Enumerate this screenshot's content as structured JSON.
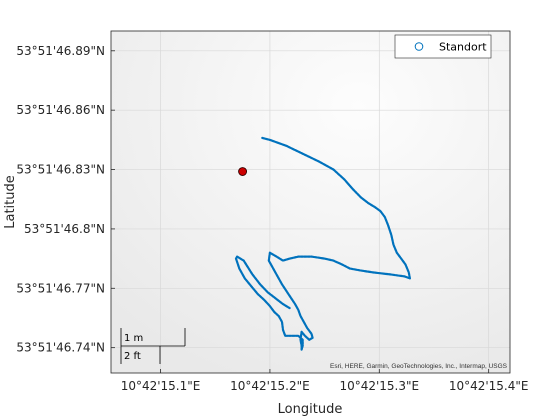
{
  "axes": {
    "xlabel": "Longitude",
    "ylabel": "Latitude",
    "xticks": [
      "10°42'15.1\"E",
      "10°42'15.2\"E",
      "10°42'15.3\"E",
      "10°42'15.4\"E"
    ],
    "yticks": [
      "53°51'46.89\"N",
      "53°51'46.86\"N",
      "53°51'46.83\"N",
      "53°51'46.8\"N",
      "53°51'46.77\"N",
      "53°51'46.74\"N"
    ],
    "grid": true
  },
  "legend": {
    "placement": "top-right",
    "entries": [
      {
        "label": "Standort",
        "marker": "circle-outline",
        "color": "#0072BD"
      }
    ]
  },
  "scalebar": {
    "metric_label": "1 m",
    "imperial_label": "2 ft"
  },
  "attribution": "Esri, HERE, Garmin, GeoTechnologies, Inc., Intermap, USGS",
  "colors": {
    "track": "#0072BD",
    "current_position_fill": "#CC0000",
    "current_position_edge": "#330000",
    "background": "#F3F3F3",
    "grid": "#D8D8D8"
  },
  "track_units": "seconds past 10°42' E / seconds past 53°51' N",
  "track_segments": [
    [
      [
        15.193,
        46.846
      ],
      [
        15.2,
        46.845
      ],
      [
        15.215,
        46.842
      ],
      [
        15.23,
        46.838
      ],
      [
        15.245,
        46.834
      ],
      [
        15.258,
        46.83
      ],
      [
        15.268,
        46.825
      ],
      [
        15.276,
        46.82
      ],
      [
        15.283,
        46.816
      ],
      [
        15.29,
        46.813
      ],
      [
        15.296,
        46.811
      ],
      [
        15.301,
        46.809
      ],
      [
        15.305,
        46.806
      ],
      [
        15.308,
        46.802
      ],
      [
        15.311,
        46.797
      ],
      [
        15.313,
        46.792
      ],
      [
        15.316,
        46.788
      ],
      [
        15.32,
        46.785
      ],
      [
        15.324,
        46.782
      ],
      [
        15.327,
        46.778
      ],
      [
        15.328,
        46.775
      ],
      [
        15.323,
        46.776
      ],
      [
        15.31,
        46.777
      ],
      [
        15.295,
        46.778
      ],
      [
        15.283,
        46.779
      ],
      [
        15.273,
        46.78
      ],
      [
        15.266,
        46.782
      ],
      [
        15.258,
        46.784
      ],
      [
        15.25,
        46.785
      ],
      [
        15.238,
        46.786
      ],
      [
        15.226,
        46.786
      ],
      [
        15.218,
        46.785
      ],
      [
        15.212,
        46.784
      ],
      [
        15.206,
        46.786
      ],
      [
        15.2,
        46.788
      ],
      [
        15.199,
        46.784
      ],
      [
        15.205,
        46.778
      ],
      [
        15.211,
        46.772
      ],
      [
        15.217,
        46.767
      ],
      [
        15.223,
        46.762
      ],
      [
        15.226,
        46.759
      ],
      [
        15.228,
        46.756
      ],
      [
        15.231,
        46.753
      ],
      [
        15.234,
        46.75
      ],
      [
        15.238,
        46.747
      ],
      [
        15.239,
        46.745
      ],
      [
        15.236,
        46.744
      ],
      [
        15.232,
        46.746
      ],
      [
        15.229,
        46.748
      ],
      [
        15.228,
        46.744
      ],
      [
        15.229,
        46.741
      ],
      [
        15.229,
        46.739
      ],
      [
        15.23,
        46.741
      ],
      [
        15.23,
        46.744
      ],
      [
        15.226,
        46.746
      ],
      [
        15.22,
        46.746
      ],
      [
        15.214,
        46.746
      ],
      [
        15.212,
        46.749
      ],
      [
        15.211,
        46.753
      ],
      [
        15.208,
        46.756
      ],
      [
        15.204,
        46.758
      ],
      [
        15.2,
        46.761
      ],
      [
        15.195,
        46.764
      ],
      [
        15.189,
        46.767
      ],
      [
        15.183,
        46.771
      ],
      [
        15.177,
        46.775
      ],
      [
        15.172,
        46.78
      ],
      [
        15.169,
        46.785
      ],
      [
        15.17,
        46.786
      ],
      [
        15.176,
        46.784
      ],
      [
        15.184,
        46.777
      ],
      [
        15.191,
        46.772
      ],
      [
        15.198,
        46.768
      ],
      [
        15.205,
        46.765
      ],
      [
        15.212,
        46.762
      ],
      [
        15.218,
        46.76
      ]
    ]
  ],
  "current_position": {
    "lon": 15.175,
    "lat": 46.829
  }
}
